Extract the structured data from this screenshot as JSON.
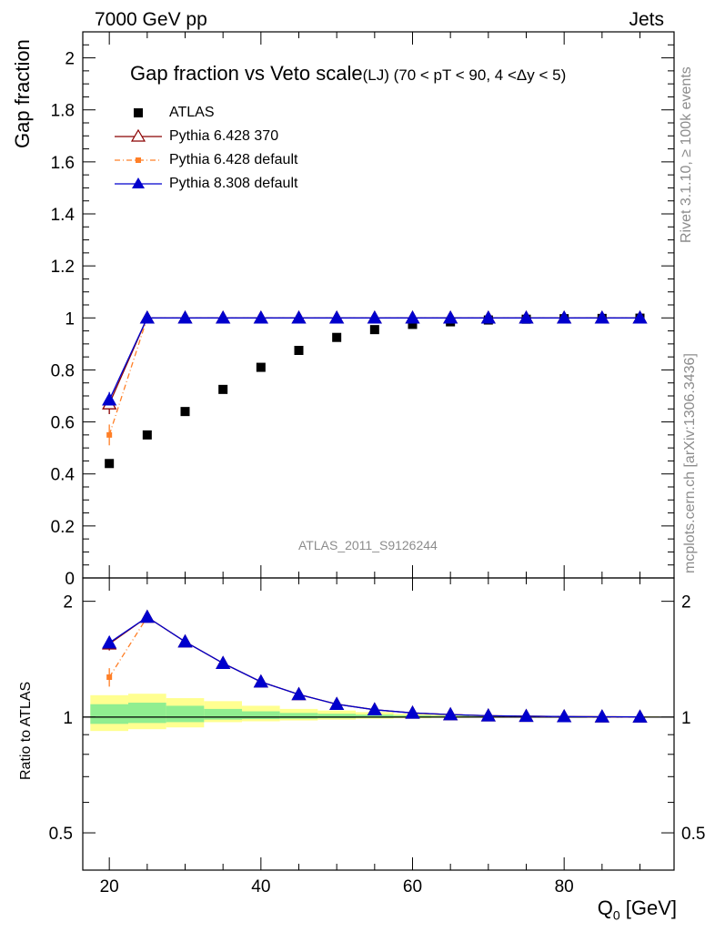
{
  "header": {
    "left": "7000 GeV pp",
    "right": "Jets"
  },
  "main_title": "Gap fraction vs Veto scale",
  "subtitle": "(LJ) (70 < pT <  90, 4 <Δy < 5)",
  "watermark": "ATLAS_2011_S9126244",
  "side_texts": {
    "rivet": "Rivet 3.1.10, ≥ 100k events",
    "mcplots": "mcplots.cern.ch [arXiv:1306.3436]"
  },
  "chart_data": {
    "type": "scatter",
    "x_label": "Q_0 [GeV]",
    "x_label_main": "Q",
    "x_label_sub": "0",
    "x_label_unit": " [GeV]",
    "xlim": [
      16.5,
      94.5
    ],
    "x_ticks": [
      20,
      40,
      60,
      80
    ],
    "x": [
      20,
      25,
      30,
      35,
      40,
      45,
      50,
      55,
      60,
      65,
      70,
      75,
      80,
      85,
      90
    ],
    "main": {
      "ylabel": "Gap fraction",
      "ylim": [
        0,
        2.1
      ],
      "y_ticks": [
        0,
        0.2,
        0.4,
        0.6,
        0.8,
        1,
        1.2,
        1.4,
        1.6,
        1.8,
        2
      ],
      "y_tick_labels": [
        "0",
        "0.2",
        "0.4",
        "0.6",
        "0.8",
        "1",
        "1.2",
        "1.4",
        "1.6",
        "1.8",
        "2"
      ],
      "series": [
        {
          "name": "ATLAS",
          "color": "#000000",
          "marker": "square",
          "values": [
            0.44,
            0.55,
            0.64,
            0.725,
            0.81,
            0.875,
            0.925,
            0.955,
            0.975,
            0.985,
            0.992,
            0.995,
            0.997,
            0.998,
            0.999
          ]
        },
        {
          "name": "Pythia 6.428 370",
          "color": "#8b0000",
          "marker": "open-triangle",
          "line": "solid",
          "values": [
            0.67,
            1.0,
            1.0,
            1.0,
            1.0,
            1.0,
            1.0,
            1.0,
            1.0,
            1.0,
            1.0,
            1.0,
            1.0,
            1.0,
            1.0
          ],
          "errors": [
            0.04,
            0,
            0,
            0,
            0,
            0,
            0,
            0,
            0,
            0,
            0,
            0,
            0,
            0,
            0
          ]
        },
        {
          "name": "Pythia 6.428 default",
          "color": "#ff7f27",
          "marker": "small-square",
          "line": "dashdot",
          "values": [
            0.55,
            1.0,
            1.0,
            1.0,
            1.0,
            1.0,
            1.0,
            1.0,
            1.0,
            1.0,
            1.0,
            1.0,
            1.0,
            1.0,
            1.0
          ],
          "errors": [
            0.04,
            0,
            0,
            0,
            0,
            0,
            0,
            0,
            0,
            0,
            0,
            0,
            0,
            0,
            0
          ]
        },
        {
          "name": "Pythia 8.308 default",
          "color": "#0000cd",
          "marker": "triangle",
          "line": "solid",
          "values": [
            0.685,
            1.0,
            1.0,
            1.0,
            1.0,
            1.0,
            1.0,
            1.0,
            1.0,
            1.0,
            1.0,
            1.0,
            1.0,
            1.0,
            1.0
          ],
          "errors": [
            0.03,
            0,
            0,
            0,
            0,
            0,
            0,
            0,
            0,
            0,
            0,
            0,
            0,
            0,
            0
          ]
        }
      ]
    },
    "ratio": {
      "ylabel": "Ratio to ATLAS",
      "scale": "log",
      "ylim": [
        0.4,
        2.3
      ],
      "y_ticks": [
        0.5,
        1,
        2
      ],
      "y_tick_labels": [
        "0.5",
        "1",
        "2"
      ],
      "band_edges": [
        17.5,
        22.5,
        27.5,
        32.5,
        37.5,
        42.5,
        47.5,
        52.5,
        57.5,
        62.5,
        67.5,
        72.5,
        77.5,
        82.5,
        87.5,
        92.5
      ],
      "band_yellow": [
        [
          0.92,
          1.14
        ],
        [
          0.93,
          1.15
        ],
        [
          0.94,
          1.12
        ],
        [
          0.97,
          1.1
        ],
        [
          0.975,
          1.07
        ],
        [
          0.98,
          1.05
        ],
        [
          0.985,
          1.04
        ],
        [
          0.99,
          1.03
        ],
        [
          0.993,
          1.02
        ],
        [
          0.995,
          1.015
        ],
        [
          0.996,
          1.01
        ],
        [
          0.997,
          1.008
        ],
        [
          0.998,
          1.006
        ],
        [
          0.998,
          1.005
        ],
        [
          0.999,
          1.004
        ]
      ],
      "band_green": [
        [
          0.96,
          1.08
        ],
        [
          0.965,
          1.09
        ],
        [
          0.97,
          1.07
        ],
        [
          0.985,
          1.05
        ],
        [
          0.988,
          1.035
        ],
        [
          0.99,
          1.025
        ],
        [
          0.993,
          1.02
        ],
        [
          0.995,
          1.015
        ],
        [
          0.996,
          1.01
        ],
        [
          0.997,
          1.008
        ],
        [
          0.998,
          1.006
        ],
        [
          0.998,
          1.005
        ],
        [
          0.999,
          1.004
        ],
        [
          0.999,
          1.003
        ],
        [
          0.999,
          1.002
        ]
      ],
      "series": [
        {
          "name": "Pythia 6.428 370",
          "values": [
            1.55,
            1.82,
            1.57,
            1.38,
            1.235,
            1.145,
            1.08,
            1.045,
            1.025,
            1.015,
            1.008,
            1.005,
            1.003,
            1.002,
            1.001
          ]
        },
        {
          "name": "Pythia 6.428 default",
          "values": [
            1.27,
            1.82,
            1.57,
            1.38,
            1.235,
            1.145,
            1.08,
            1.045,
            1.025,
            1.015,
            1.008,
            1.005,
            1.003,
            1.002,
            1.001
          ]
        },
        {
          "name": "Pythia 8.308 default",
          "values": [
            1.56,
            1.82,
            1.57,
            1.38,
            1.235,
            1.145,
            1.08,
            1.045,
            1.025,
            1.015,
            1.008,
            1.005,
            1.003,
            1.002,
            1.001
          ]
        }
      ]
    }
  }
}
